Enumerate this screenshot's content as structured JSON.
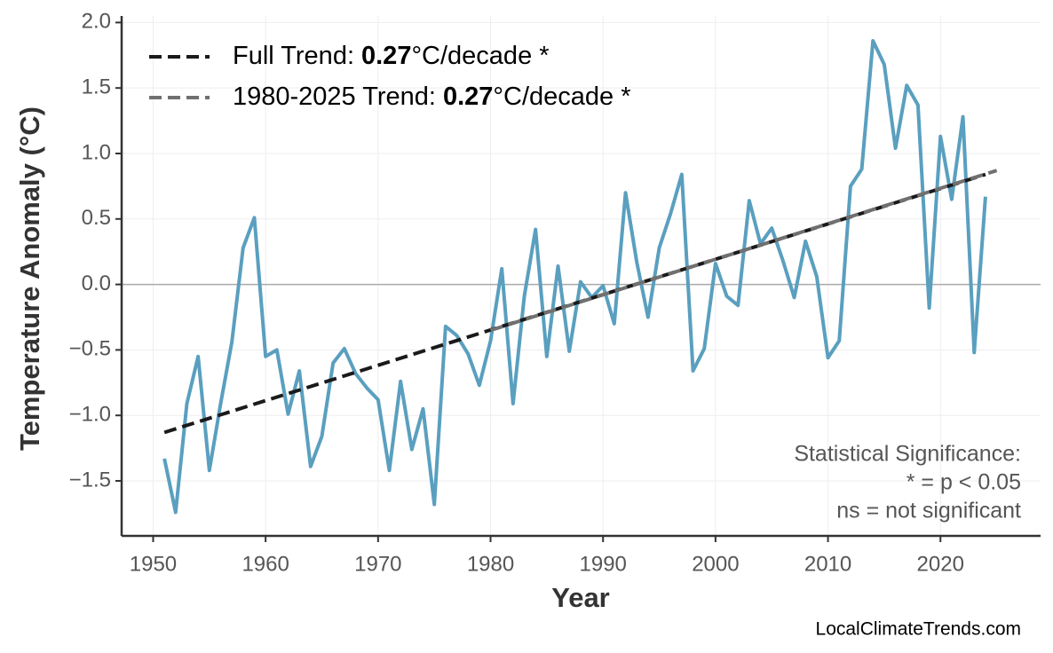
{
  "chart_data": {
    "type": "line",
    "xlabel": "Year",
    "ylabel": "Temperature Anomaly (°C)",
    "xlim": [
      1947.2,
      2028.9
    ],
    "ylim": [
      -1.92,
      2.05
    ],
    "xticks": [
      1950,
      1960,
      1970,
      1980,
      1990,
      2000,
      2010,
      2020
    ],
    "yticks": [
      {
        "value": -1.5,
        "label": "−1.5"
      },
      {
        "value": -1,
        "label": "−1.0"
      },
      {
        "value": -0.5,
        "label": "−0.5"
      },
      {
        "value": 0,
        "label": "0.0"
      },
      {
        "value": 0.5,
        "label": "0.5"
      },
      {
        "value": 1,
        "label": "1.0"
      },
      {
        "value": 1.5,
        "label": "1.5"
      },
      {
        "value": 2,
        "label": "2.0"
      }
    ],
    "grid": true,
    "zero_line": true,
    "legend_position": "upper left",
    "series": [
      {
        "color": "#5a9fbf",
        "style": "solid",
        "x": [
          1951,
          1952,
          1953,
          1954,
          1955,
          1956,
          1957,
          1958,
          1959,
          1960,
          1961,
          1962,
          1963,
          1964,
          1965,
          1966,
          1967,
          1968,
          1969,
          1970,
          1971,
          1972,
          1973,
          1974,
          1975,
          1976,
          1977,
          1978,
          1979,
          1980,
          1981,
          1982,
          1983,
          1984,
          1985,
          1986,
          1987,
          1988,
          1989,
          1990,
          1991,
          1992,
          1993,
          1994,
          1995,
          1996,
          1997,
          1998,
          1999,
          2000,
          2001,
          2002,
          2003,
          2004,
          2005,
          2006,
          2007,
          2008,
          2009,
          2010,
          2011,
          2012,
          2013,
          2014,
          2015,
          2016,
          2017,
          2018,
          2019,
          2020,
          2021,
          2022,
          2023,
          2024
        ],
        "values": [
          -1.33,
          -1.74,
          -0.91,
          -0.55,
          -1.42,
          -0.91,
          -0.44,
          0.28,
          0.51,
          -0.55,
          -0.5,
          -0.99,
          -0.66,
          -1.39,
          -1.16,
          -0.6,
          -0.49,
          -0.68,
          -0.79,
          -0.88,
          -1.42,
          -0.74,
          -1.26,
          -0.95,
          -1.68,
          -0.32,
          -0.39,
          -0.53,
          -0.77,
          -0.43,
          0.12,
          -0.91,
          -0.09,
          0.42,
          -0.55,
          0.14,
          -0.51,
          0.02,
          -0.1,
          -0.01,
          -0.3,
          0.7,
          0.17,
          -0.25,
          0.28,
          0.54,
          0.84,
          -0.66,
          -0.49,
          0.16,
          -0.09,
          -0.16,
          0.64,
          0.31,
          0.43,
          0.18,
          -0.1,
          0.33,
          0.06,
          -0.56,
          -0.43,
          0.75,
          0.88,
          1.86,
          1.68,
          1.04,
          1.52,
          1.37,
          -0.18,
          1.13,
          0.65,
          1.28,
          -0.52,
          0.67
        ]
      },
      {
        "color": "#1a1a1a",
        "style": "dashed",
        "name_parts": [
          "Full Trend:",
          "0.27",
          "°C/decade *"
        ],
        "x": [
          1951,
          2024
        ],
        "values": [
          -1.13,
          0.84
        ]
      },
      {
        "color": "#707070",
        "style": "dashed",
        "name_parts": [
          "1980-2025 Trend:",
          "0.27",
          "°C/decade *"
        ],
        "x": [
          1980,
          2025
        ],
        "values": [
          -0.35,
          0.87
        ]
      }
    ],
    "annotation": [
      "Statistical Significance:",
      "* = p < 0.05",
      "ns = not significant"
    ],
    "source": "LocalClimateTrends.com"
  }
}
